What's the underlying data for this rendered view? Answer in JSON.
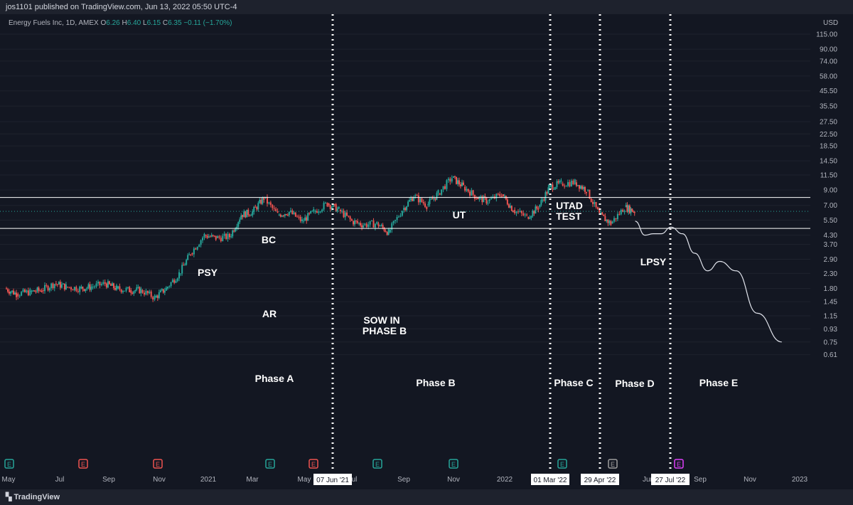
{
  "header": {
    "published": "jos1101 published on TradingView.com, Jun 13, 2022 05:50 UTC-4"
  },
  "symbol": {
    "name": "Energy Fuels Inc, 1D, AMEX",
    "o_label": "O",
    "o": "6.26",
    "h_label": "H",
    "h": "6.40",
    "l_label": "L",
    "l": "6.15",
    "c_label": "C",
    "c": "6.35",
    "change": "−0.11 (−1.70%)"
  },
  "footer": {
    "brand": "TradingView"
  },
  "chart_data": {
    "type": "line",
    "currency": "USD",
    "scale": "log",
    "y_ticks": [
      "115.00",
      "90.00",
      "74.00",
      "58.00",
      "45.50",
      "35.50",
      "27.50",
      "22.50",
      "18.50",
      "14.50",
      "11.50",
      "9.00",
      "7.00",
      "5.50",
      "4.30",
      "3.70",
      "2.90",
      "2.30",
      "1.80",
      "1.45",
      "1.15",
      "0.93",
      "0.75",
      "0.61"
    ],
    "x_ticks": [
      "May",
      "Jul",
      "Sep",
      "Nov",
      "2021",
      "Mar",
      "May",
      "Jul",
      "Sep",
      "Nov",
      "2022",
      "Jun",
      "Sep",
      "Nov",
      "2023"
    ],
    "vline_labels": [
      "07 Jun '21",
      "01 Mar '22",
      "29 Apr '22",
      "27 Jul '22"
    ],
    "price_levels": [
      {
        "value": "7.96",
        "color": "#ffffff"
      },
      {
        "value": "4.80",
        "color": "#ffffff"
      },
      {
        "value": "6.35",
        "color": "#26a69a"
      }
    ],
    "wyckoff_labels": [
      "PSY",
      "BC",
      "AR",
      "SOW IN",
      "PHASE B",
      "UT",
      "UTAD",
      "TEST",
      "LPSY"
    ],
    "phase_labels": [
      "Phase A",
      "Phase B",
      "Phase C",
      "Phase D",
      "Phase E"
    ],
    "earnings_markers": [
      {
        "label": "E",
        "color": "#26a69a"
      },
      {
        "label": "E",
        "color": "#ef5350"
      },
      {
        "label": "E",
        "color": "#ef5350"
      },
      {
        "label": "E",
        "color": "#26a69a"
      },
      {
        "label": "E",
        "color": "#ef5350"
      },
      {
        "label": "E",
        "color": "#26a69a"
      },
      {
        "label": "E",
        "color": "#26a69a"
      },
      {
        "label": "E",
        "color": "#26a69a"
      },
      {
        "label": "E",
        "color": "#9e9e9e"
      },
      {
        "label": "E",
        "color": "#e040fb"
      }
    ],
    "series": [
      {
        "type": "candle-close",
        "x": [
          "2020-05-01",
          "2020-05-15",
          "2020-06-01",
          "2020-06-15",
          "2020-07-01",
          "2020-07-15",
          "2020-08-01",
          "2020-08-15",
          "2020-09-01",
          "2020-09-15",
          "2020-10-01",
          "2020-10-15",
          "2020-11-01",
          "2020-11-15",
          "2020-12-01",
          "2020-12-15",
          "2021-01-01",
          "2021-01-15",
          "2021-02-01",
          "2021-02-15",
          "2021-03-01",
          "2021-03-15",
          "2021-04-01",
          "2021-04-15",
          "2021-05-01",
          "2021-05-15",
          "2021-06-01",
          "2021-06-15",
          "2021-07-01",
          "2021-07-15",
          "2021-08-01",
          "2021-08-15",
          "2021-09-01",
          "2021-09-15",
          "2021-10-01",
          "2021-10-15",
          "2021-11-01",
          "2021-11-15",
          "2021-12-01",
          "2021-12-15",
          "2022-01-01",
          "2022-01-15",
          "2022-02-01",
          "2022-02-15",
          "2022-03-01",
          "2022-03-15",
          "2022-04-01",
          "2022-04-15",
          "2022-05-01",
          "2022-05-15",
          "2022-06-01",
          "2022-06-13"
        ],
        "close": [
          1.8,
          1.65,
          1.7,
          1.75,
          1.95,
          1.85,
          1.8,
          1.85,
          1.95,
          1.8,
          1.75,
          1.75,
          1.55,
          1.8,
          2.3,
          3.2,
          4.3,
          4.1,
          4.2,
          6.0,
          6.3,
          7.9,
          6.0,
          6.3,
          5.4,
          6.3,
          7.2,
          6.5,
          5.4,
          5.1,
          5.2,
          4.5,
          6.5,
          8.2,
          7.0,
          8.5,
          11.0,
          9.5,
          8.0,
          7.5,
          8.4,
          6.5,
          5.8,
          6.8,
          9.5,
          10.0,
          10.2,
          9.0,
          6.0,
          5.2,
          6.8,
          6.35
        ]
      },
      {
        "type": "projection",
        "x": [
          "2022-06-13",
          "2022-06-25",
          "2022-07-05",
          "2022-07-15",
          "2022-07-27",
          "2022-08-10",
          "2022-08-25",
          "2022-09-10",
          "2022-09-25",
          "2022-10-15",
          "2022-11-10",
          "2022-12-10"
        ],
        "y": [
          5.4,
          4.3,
          4.4,
          4.4,
          4.9,
          4.4,
          3.2,
          2.4,
          2.8,
          2.4,
          1.2,
          0.75
        ]
      }
    ]
  }
}
